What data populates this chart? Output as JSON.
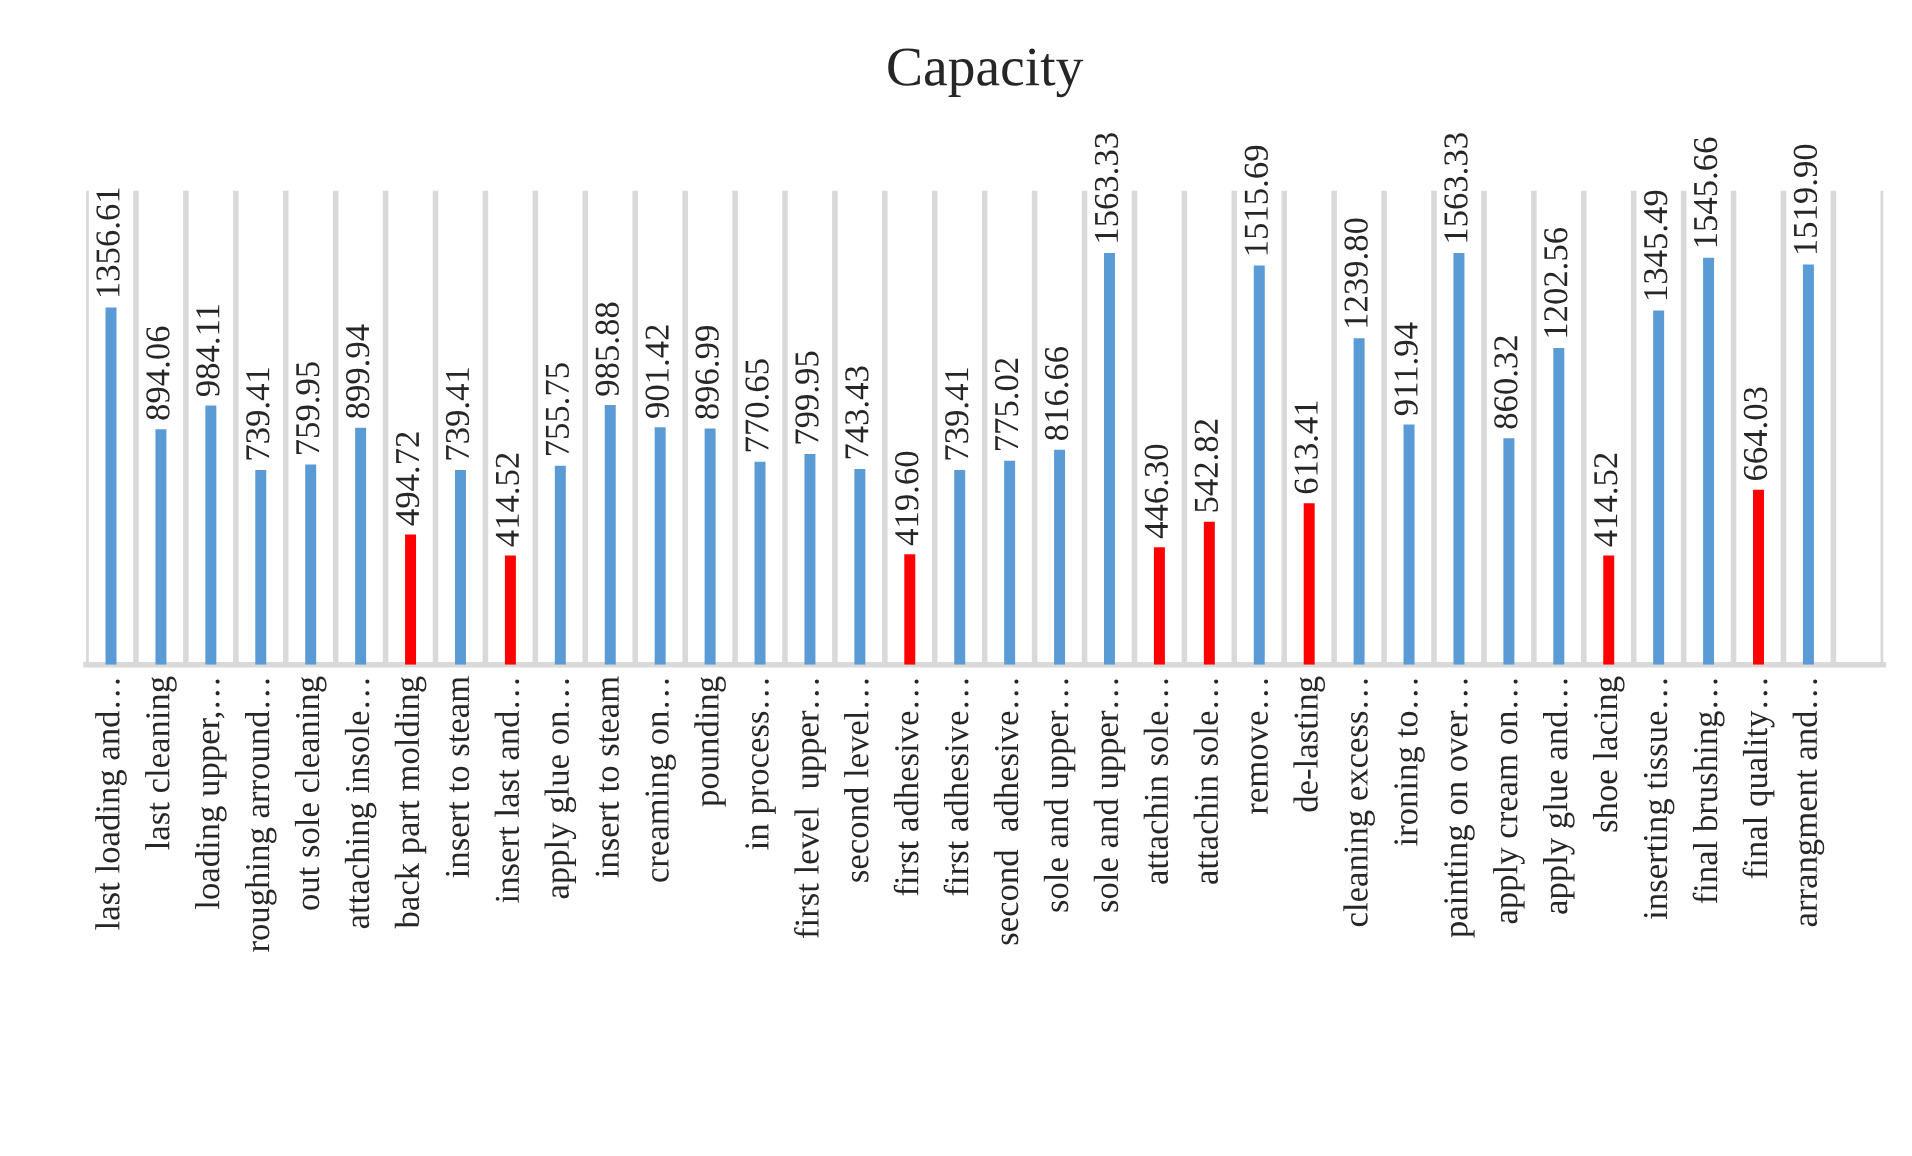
{
  "chart_data": {
    "type": "bar",
    "title": "Capacity",
    "categories": [
      "last loading and…",
      "last cleaning",
      "loading upper,…",
      "roughing arround…",
      "out sole cleaning",
      "attaching insole…",
      "back part molding",
      "insert to steam",
      "insert last and…",
      "apply glue on…",
      "insert to steam",
      "creaming on…",
      "pounding",
      "in process…",
      "first level  upper…",
      "second level…",
      "first adhesive…",
      "first adhesive…",
      "second  adhesive…",
      "sole and upper…",
      "sole and upper…",
      "attachin sole…",
      "attachin sole…",
      "remove…",
      "de-lasting",
      "cleaning excess…",
      "ironing to…",
      "painting on over…",
      "apply cream on…",
      "apply glue and…",
      "shoe lacing",
      "inserting tissue…",
      "final brushing…",
      "final quality…",
      "arrangment and…",
      null
    ],
    "values": [
      1356.61,
      894.06,
      984.11,
      739.41,
      759.95,
      899.94,
      494.72,
      739.41,
      414.52,
      755.75,
      985.88,
      901.42,
      896.99,
      770.65,
      799.95,
      743.43,
      419.6,
      739.41,
      775.02,
      816.66,
      1563.33,
      446.3,
      542.82,
      1515.69,
      613.41,
      1239.8,
      911.94,
      1563.33,
      860.32,
      1202.56,
      414.52,
      1345.49,
      1545.66,
      664.03,
      1519.9,
      null
    ],
    "value_labels": [
      "1356.61",
      "894.06",
      "984.11",
      "739.41",
      "759.95",
      "899.94",
      "494.72",
      "739.41",
      "414.52",
      "755.75",
      "985.88",
      "901.42",
      "896.99",
      "770.65",
      "799.95",
      "743.43",
      "419.60",
      "739.41",
      "775.02",
      "816.66",
      "1563.33",
      "446.30",
      "542.82",
      "1515.69",
      "613.41",
      "1239.80",
      "911.94",
      "1563.33",
      "860.32",
      "1202.56",
      "414.52",
      "1345.49",
      "1545.66",
      "664.03",
      "1519.90",
      null
    ],
    "colors": [
      "#5b9bd5",
      "#5b9bd5",
      "#5b9bd5",
      "#5b9bd5",
      "#5b9bd5",
      "#5b9bd5",
      "#ff0000",
      "#5b9bd5",
      "#ff0000",
      "#5b9bd5",
      "#5b9bd5",
      "#5b9bd5",
      "#5b9bd5",
      "#5b9bd5",
      "#5b9bd5",
      "#5b9bd5",
      "#ff0000",
      "#5b9bd5",
      "#5b9bd5",
      "#5b9bd5",
      "#5b9bd5",
      "#ff0000",
      "#ff0000",
      "#5b9bd5",
      "#ff0000",
      "#5b9bd5",
      "#5b9bd5",
      "#5b9bd5",
      "#5b9bd5",
      "#5b9bd5",
      "#ff0000",
      "#5b9bd5",
      "#5b9bd5",
      "#ff0000",
      "#5b9bd5",
      "#5b9bd5"
    ],
    "ylim": [
      0,
      1800
    ],
    "tick_labels": "x",
    "grid": "x",
    "legend": false
  }
}
